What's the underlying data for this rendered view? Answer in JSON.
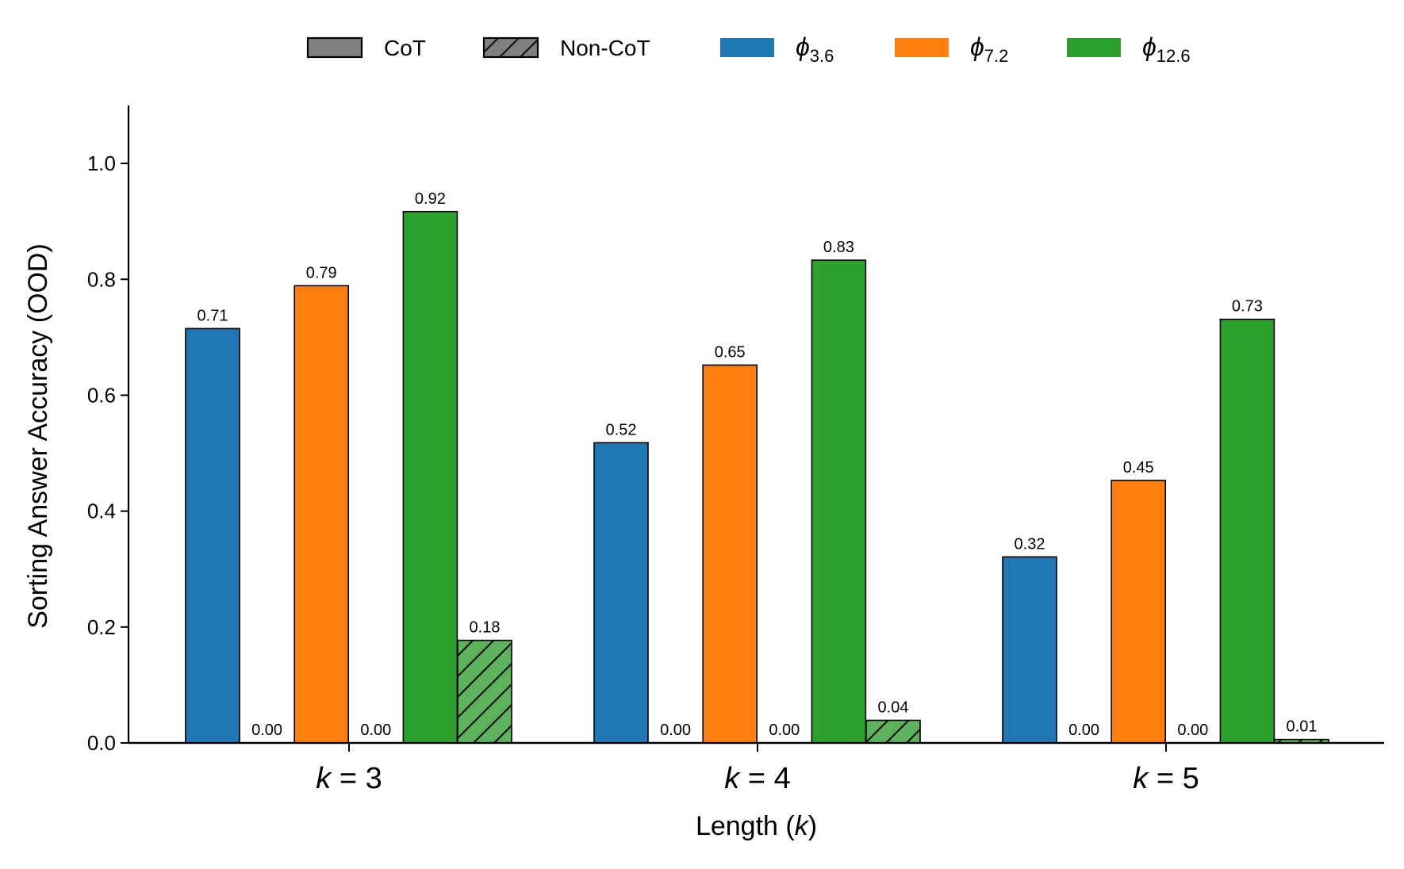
{
  "chart_data": {
    "type": "bar",
    "title": "",
    "xlabel": "Length (k)",
    "xlabel_parts": {
      "prefix": "Length (",
      "var": "k",
      "suffix": ")"
    },
    "ylabel": "Sorting Answer Accuracy (OOD)",
    "ylim": [
      0,
      1.1
    ],
    "yticks": [
      "0.0",
      "0.2",
      "0.4",
      "0.6",
      "0.8",
      "1.0"
    ],
    "ytick_values": [
      0,
      0.2,
      0.4,
      0.6,
      0.8,
      1.0
    ],
    "categories": [
      {
        "var": "k",
        "op": "=",
        "num": "3"
      },
      {
        "var": "k",
        "op": "=",
        "num": "4"
      },
      {
        "var": "k",
        "op": "=",
        "num": "5"
      }
    ],
    "groups": [
      {
        "name": "φ3.6",
        "symbol": "ϕ",
        "subscript": "3.6",
        "color": "#1f77b4",
        "edge_color": "#000000",
        "hatch_color": "#3d8cc7",
        "cot": [
          0.715,
          0.518,
          0.321
        ],
        "cot_labels": [
          "0.71",
          "0.52",
          "0.32"
        ],
        "noncot": [
          0.0,
          0.0,
          0.0
        ],
        "noncot_labels": [
          "0.00",
          "0.00",
          "0.00"
        ]
      },
      {
        "name": "φ7.2",
        "symbol": "ϕ",
        "subscript": "7.2",
        "color": "#ff7f0e",
        "edge_color": "#000000",
        "hatch_color": "#ff9a45",
        "cot": [
          0.789,
          0.652,
          0.453
        ],
        "cot_labels": [
          "0.79",
          "0.65",
          "0.45"
        ],
        "noncot": [
          0.0,
          0.0,
          0.0
        ],
        "noncot_labels": [
          "0.00",
          "0.00",
          "0.00"
        ]
      },
      {
        "name": "φ12.6",
        "symbol": "ϕ",
        "subscript": "12.6",
        "color": "#2ca02c",
        "edge_color": "#000000",
        "hatch_color": "#5cb35c",
        "cot": [
          0.917,
          0.833,
          0.731
        ],
        "cot_labels": [
          "0.92",
          "0.83",
          "0.73"
        ],
        "noncot": [
          0.177,
          0.039,
          0.006
        ],
        "noncot_labels": [
          "0.18",
          "0.04",
          "0.01"
        ]
      }
    ],
    "legend": {
      "placement": "top-center",
      "style_entries": [
        {
          "label": "CoT",
          "style": "solid",
          "color": "#808080"
        },
        {
          "label": "Non-CoT",
          "style": "hatched",
          "color": "#808080"
        }
      ]
    }
  }
}
